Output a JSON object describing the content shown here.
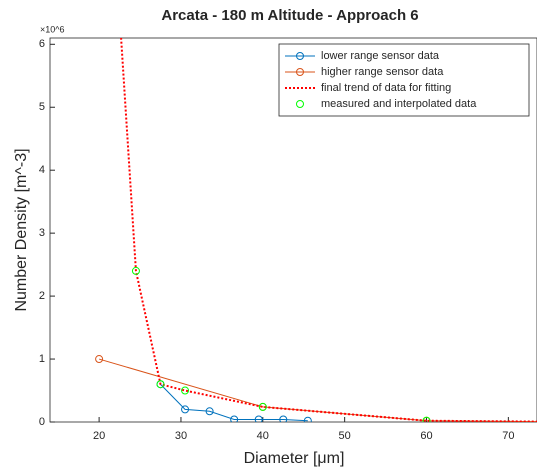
{
  "chart_data": {
    "type": "line",
    "title": "Arcata - 180 m Altitude - Approach 6",
    "xlabel": "Diameter [μm]",
    "ylabel": "Number Density [m^-3]",
    "y_exponent_label": "×10^6",
    "xlim": [
      14,
      73.5
    ],
    "ylim": [
      0,
      6.1
    ],
    "xticks": [
      20,
      30,
      40,
      50,
      60,
      70
    ],
    "yticks": [
      0,
      1,
      2,
      3,
      4,
      5,
      6
    ],
    "legend_position": "top-right",
    "series": [
      {
        "name": "lower range sensor data",
        "color": "#0072bd",
        "line_style": "solid",
        "marker": "circle",
        "x": [
          27.5,
          30.5,
          33.5,
          36.5,
          39.5,
          42.5,
          45.5
        ],
        "values": [
          0.6,
          0.2,
          0.17,
          0.04,
          0.04,
          0.04,
          0.02
        ]
      },
      {
        "name": "higher range sensor data",
        "color": "#d95319",
        "line_style": "solid",
        "marker": "circle",
        "x": [
          20,
          40,
          60,
          80
        ],
        "values": [
          1.0,
          0.24,
          0.02,
          0.0
        ]
      },
      {
        "name": "final trend of data for fitting",
        "color": "#ff0000",
        "line_style": "dotted",
        "marker": "none",
        "x": [
          22,
          24.5,
          27.5,
          30.5,
          40,
          60,
          80
        ],
        "values": [
          7.5,
          2.4,
          0.6,
          0.5,
          0.24,
          0.02,
          0.0
        ]
      },
      {
        "name": "measured and interpolated data",
        "color": "#00ff00",
        "line_style": "none",
        "marker": "circle",
        "x": [
          24.5,
          27.5,
          30.5,
          40,
          60
        ],
        "values": [
          2.4,
          0.6,
          0.5,
          0.24,
          0.02
        ]
      }
    ]
  }
}
